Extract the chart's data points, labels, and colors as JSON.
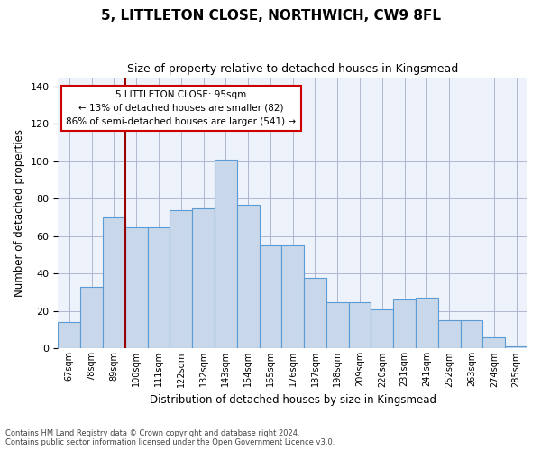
{
  "title": "5, LITTLETON CLOSE, NORTHWICH, CW9 8FL",
  "subtitle": "Size of property relative to detached houses in Kingsmead",
  "xlabel": "Distribution of detached houses by size in Kingsmead",
  "ylabel": "Number of detached properties",
  "bin_labels": [
    "67sqm",
    "78sqm",
    "89sqm",
    "100sqm",
    "111sqm",
    "122sqm",
    "132sqm",
    "143sqm",
    "154sqm",
    "165sqm",
    "176sqm",
    "187sqm",
    "198sqm",
    "209sqm",
    "220sqm",
    "231sqm",
    "241sqm",
    "252sqm",
    "263sqm",
    "274sqm",
    "285sqm"
  ],
  "bar_heights": [
    14,
    33,
    70,
    65,
    65,
    74,
    75,
    101,
    77,
    55,
    55,
    38,
    25,
    25,
    21,
    26,
    27,
    15,
    15,
    6,
    1
  ],
  "annotation_text": "5 LITTLETON CLOSE: 95sqm\n← 13% of detached houses are smaller (82)\n86% of semi-detached houses are larger (541) →",
  "property_line_x": 2.5,
  "bar_color": "#c8d8ea",
  "bar_edge_color": "#5b9bd5",
  "line_color": "#9b0000",
  "annotation_box_color": "#ffffff",
  "annotation_box_edge": "#cc0000",
  "background_color": "#eef2fb",
  "footer_text": "Contains HM Land Registry data © Crown copyright and database right 2024.\nContains public sector information licensed under the Open Government Licence v3.0.",
  "ylim": [
    0,
    145
  ],
  "yticks": [
    0,
    20,
    40,
    60,
    80,
    100,
    120,
    140
  ]
}
